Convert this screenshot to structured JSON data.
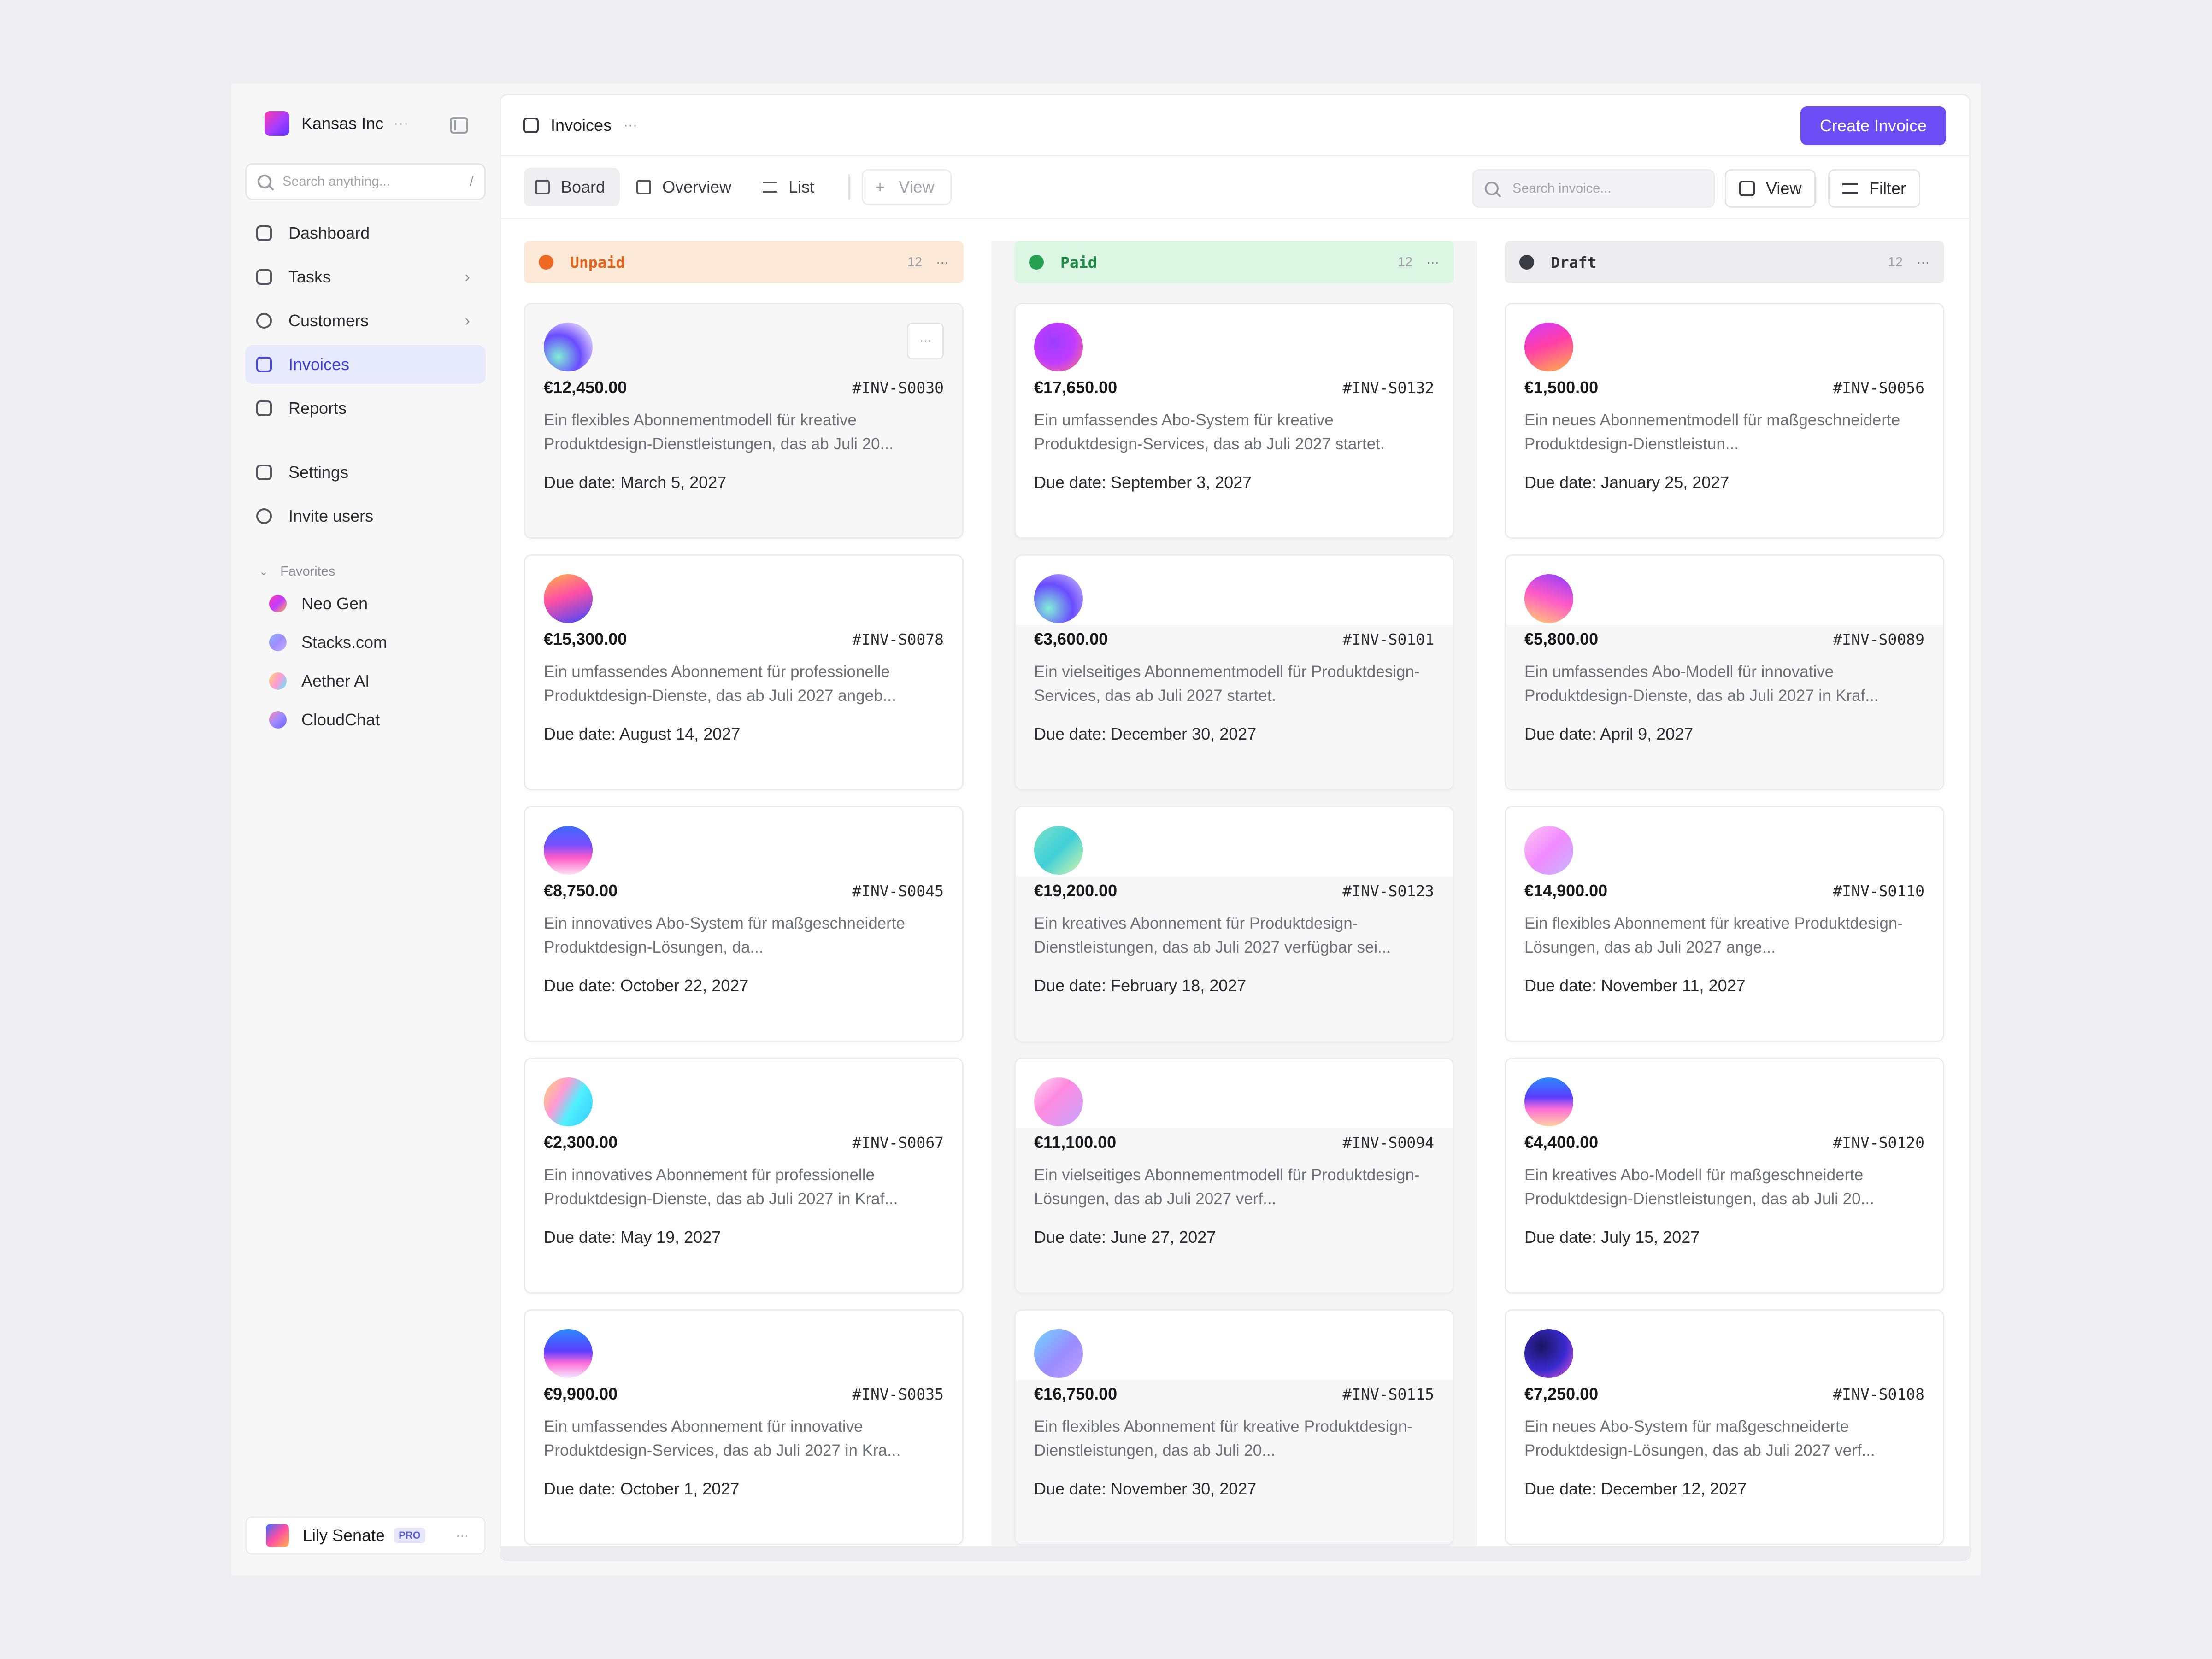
{
  "workspace": {
    "name": "Kansas Inc",
    "more": "···"
  },
  "sidebar": {
    "search_placeholder": "Search anything...",
    "search_shortcut": "/",
    "nav": [
      {
        "label": "Dashboard",
        "icon": "home-icon"
      },
      {
        "label": "Tasks",
        "icon": "clipboard-check-icon",
        "chevron": "›"
      },
      {
        "label": "Customers",
        "icon": "user-circle-icon",
        "chevron": "›"
      },
      {
        "label": "Invoices",
        "icon": "invoice-icon",
        "active": true
      },
      {
        "label": "Reports",
        "icon": "report-icon"
      }
    ],
    "nav2": [
      {
        "label": "Settings",
        "icon": "sliders-icon"
      },
      {
        "label": "Invite users",
        "icon": "user-plus-icon"
      }
    ],
    "favorites_label": "Favorites",
    "favorites": [
      {
        "label": "Neo Gen",
        "color": "#e94bff"
      },
      {
        "label": "Stacks.com",
        "color": "#8ba3ff"
      },
      {
        "label": "Aether AI",
        "color": "#6fd6ff"
      },
      {
        "label": "CloudChat",
        "color": "#b58bff"
      }
    ],
    "user": {
      "name": "Lily Senate",
      "badge": "PRO",
      "more": "···"
    }
  },
  "header": {
    "title": "Invoices",
    "more": "···",
    "create_label": "Create Invoice"
  },
  "toolbar": {
    "tabs": [
      "Board",
      "Overview",
      "List"
    ],
    "add_view": "View",
    "search_placeholder": "Search invoice...",
    "view_label": "View",
    "filter_label": "Filter"
  },
  "columns": [
    {
      "title": "Unpaid",
      "count": "12",
      "more": "···",
      "cards": [
        {
          "amount": "€12,450.00",
          "id": "#INV-S0030",
          "desc": "Ein flexibles Abonnementmodell für kreative Produktdesign-Dienstleistungen, das ab Juli 20...",
          "due": "Due date: March 5, 2027",
          "g": "radial-gradient(circle at 30% 70%, #7ef0d6 0%, #6a4cff 45%, #cbb8ff 75%, #f2e6ff 100%)"
        },
        {
          "amount": "€15,300.00",
          "id": "#INV-S0078",
          "desc": "Ein umfassendes Abonnement für professionelle Produktdesign-Dienste, das ab Juli 2027 angeb...",
          "due": "Due date: August 14, 2027",
          "g": "linear-gradient(160deg, #ffb347 0%, #ff4fa5 45%, #3c48ff 100%)"
        },
        {
          "amount": "€8,750.00",
          "id": "#INV-S0045",
          "desc": "Ein innovatives Abo-System für maßgeschneiderte Produktdesign-Lösungen, da...",
          "due": "Due date: October 22, 2027",
          "g": "linear-gradient(180deg, #3c6bff 0%, #7b4dff 40%, #ff5ac8 65%, #ffe1f1 100%)"
        },
        {
          "amount": "€2,300.00",
          "id": "#INV-S0067",
          "desc": "Ein innovatives Abonnement für professionelle Produktdesign-Dienste, das ab Juli 2027 in Kraf...",
          "due": "Due date: May 19, 2027",
          "g": "linear-gradient(120deg, #ffd56b 0%, #ff9ad5 35%, #4ef0ff 60%, #38c8ff 100%)"
        },
        {
          "amount": "€9,900.00",
          "id": "#INV-S0035",
          "desc": "Ein umfassendes Abonnement für innovative Produktdesign-Services, das ab Juli 2027 in Kra...",
          "due": "Due date: October 1, 2027",
          "g": "linear-gradient(180deg, #2b8bff 0%, #5a3dff 45%, #ff6fd8 70%, #f1e9ff 100%)"
        }
      ]
    },
    {
      "title": "Paid",
      "count": "12",
      "more": "···",
      "cards": [
        {
          "amount": "€17,650.00",
          "id": "#INV-S0132",
          "desc": "Ein umfassendes Abo-System für kreative Produktdesign-Services, das ab Juli 2027 startet.",
          "due": "Due date: September 3, 2027",
          "g": "radial-gradient(circle at 40% 40%, #9b3dff 0%, #c13cff 50%, #ff7a6b 100%)"
        },
        {
          "amount": "€3,600.00",
          "id": "#INV-S0101",
          "desc": "Ein vielseitiges Abonnementmodell für Produktdesign-Services, das ab Juli 2027 startet.",
          "due": "Due date: December 30, 2027",
          "g": "radial-gradient(circle at 30% 70%, #7ef0d6 0%, #6a4cff 50%, #d6c8ff 100%)"
        },
        {
          "amount": "€19,200.00",
          "id": "#INV-S0123",
          "desc": "Ein kreatives Abonnement für Produktdesign-Dienstleistungen, das ab Juli 2027 verfügbar sei...",
          "due": "Due date: February 18, 2027",
          "g": "linear-gradient(135deg, #7fe3c6 0%, #3fcfd8 50%, #d8f7a8 100%)"
        },
        {
          "amount": "€11,100.00",
          "id": "#INV-S0094",
          "desc": "Ein vielseitiges Abonnementmodell für Produktdesign-Lösungen, das ab Juli 2027 verf...",
          "due": "Due date: June 27, 2027",
          "g": "linear-gradient(135deg, #ffd6f0 0%, #ff8be0 40%, #c9a5ff 100%)"
        },
        {
          "amount": "€16,750.00",
          "id": "#INV-S0115",
          "desc": "Ein flexibles Abonnement für kreative Produktdesign-Dienstleistungen, das ab Juli 20...",
          "due": "Due date: November 30, 2027",
          "g": "linear-gradient(135deg, #6fd6ff 0%, #9a8bff 55%, #c4a2ff 100%)"
        }
      ]
    },
    {
      "title": "Draft",
      "count": "12",
      "more": "···",
      "cards": [
        {
          "amount": "€1,500.00",
          "id": "#INV-S0056",
          "desc": "Ein neues Abonnementmodell für maßgeschneiderte Produktdesign-Dienstleistun...",
          "due": "Due date: January 25, 2027",
          "g": "linear-gradient(160deg, #d13cff 0%, #ff3da8 45%, #ffb347 100%)"
        },
        {
          "amount": "€5,800.00",
          "id": "#INV-S0089",
          "desc": "Ein umfassendes Abo-Modell für innovative Produktdesign-Dienste, das ab Juli 2027 in Kraf...",
          "due": "Due date: April 9, 2027",
          "g": "linear-gradient(200deg, #8a3dff 0%, #ff5ac8 50%, #ffd36b 100%)"
        },
        {
          "amount": "€14,900.00",
          "id": "#INV-S0110",
          "desc": "Ein flexibles Abonnement für kreative Produktdesign-Lösungen, das ab Juli 2027 ange...",
          "due": "Due date: November 11, 2027",
          "g": "linear-gradient(135deg, #ffc6f2 0%, #f08bff 50%, #c7b7ff 100%)"
        },
        {
          "amount": "€4,400.00",
          "id": "#INV-S0120",
          "desc": "Ein kreatives Abo-Modell für maßgeschneiderte Produktdesign-Dienstleistungen, das ab Juli 20...",
          "due": "Due date: July 15, 2027",
          "g": "linear-gradient(180deg, #2b8bff 0%, #5a3dff 40%, #ff6fd8 65%, #ffd2a1 100%)"
        },
        {
          "amount": "€7,250.00",
          "id": "#INV-S0108",
          "desc": "Ein neues Abo-System für maßgeschneiderte Produktdesign-Lösungen, das ab Juli 2027 verf...",
          "due": "Due date: December 12, 2027",
          "g": "radial-gradient(circle at 35% 35%, #1b1460 0%, #3a2bd1 55%, #ff5ac8 100%)"
        }
      ]
    }
  ]
}
